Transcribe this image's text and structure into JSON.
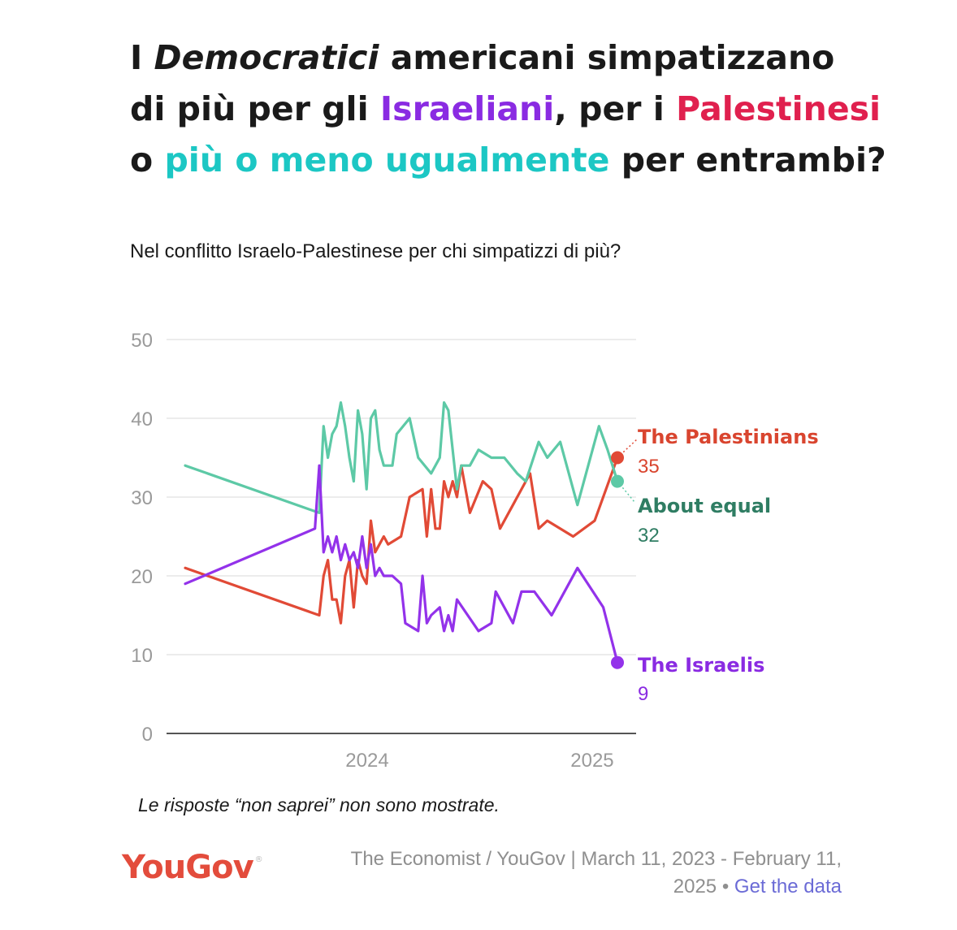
{
  "headline": {
    "l1_a": "I ",
    "l1_em": "Democratici",
    "l1_b": " americani simpatizzano",
    "l2_a": "di più per gli ",
    "l2_isr": "Israeliani",
    "l2_b": ", per i ",
    "l2_pal": "Palestinesi",
    "l3_a": "o ",
    "l3_eq": "più o meno ugualmente",
    "l3_b": " per entrambi?"
  },
  "question": "Nel conflitto Israelo-Palestinese per chi simpatizzi di più?",
  "note": "Le risposte “non saprei” non sono mostrate.",
  "footer": {
    "logo": "YouGov",
    "source_line1": "The Economist / YouGov | March 11, 2023 - February 11,",
    "source_line2a": "2025 • ",
    "source_link": "Get the data"
  },
  "colors": {
    "palestinians": "#e14a36",
    "about_equal": "#5dc9a6",
    "israelis": "#9332ea",
    "label_equal": "#2f7d63",
    "label_pal": "#d9452f",
    "label_isr": "#8a2be2",
    "grid": "#e6e6e6",
    "axis": "#555555"
  },
  "chart_data": {
    "type": "line",
    "y_ticks": [
      "0",
      "10",
      "20",
      "30",
      "40",
      "50"
    ],
    "ylim": [
      0,
      50
    ],
    "x_ticks": [
      "2024",
      "2025"
    ],
    "x_range": [
      "2023-03-11",
      "2025-02-11"
    ],
    "series": [
      {
        "name": "The Palestinians",
        "end_value": "35",
        "color_key": "palestinians",
        "points": [
          [
            "2023-03-11",
            21
          ],
          [
            "2023-10-15",
            15
          ],
          [
            "2023-10-22",
            20
          ],
          [
            "2023-10-29",
            22
          ],
          [
            "2023-11-05",
            17
          ],
          [
            "2023-11-12",
            17
          ],
          [
            "2023-11-19",
            14
          ],
          [
            "2023-11-26",
            20
          ],
          [
            "2023-12-03",
            22
          ],
          [
            "2023-12-10",
            16
          ],
          [
            "2023-12-17",
            22
          ],
          [
            "2023-12-24",
            20
          ],
          [
            "2023-12-31",
            19
          ],
          [
            "2024-01-07",
            27
          ],
          [
            "2024-01-14",
            23
          ],
          [
            "2024-01-21",
            24
          ],
          [
            "2024-01-28",
            25
          ],
          [
            "2024-02-04",
            24
          ],
          [
            "2024-02-25",
            25
          ],
          [
            "2024-03-10",
            30
          ],
          [
            "2024-03-31",
            31
          ],
          [
            "2024-04-07",
            25
          ],
          [
            "2024-04-14",
            31
          ],
          [
            "2024-04-21",
            26
          ],
          [
            "2024-04-28",
            26
          ],
          [
            "2024-05-05",
            32
          ],
          [
            "2024-05-12",
            30
          ],
          [
            "2024-05-19",
            32
          ],
          [
            "2024-05-26",
            30
          ],
          [
            "2024-06-02",
            34
          ],
          [
            "2024-06-16",
            28
          ],
          [
            "2024-07-07",
            32
          ],
          [
            "2024-07-21",
            31
          ],
          [
            "2024-08-04",
            26
          ],
          [
            "2024-08-25",
            29
          ],
          [
            "2024-09-22",
            33
          ],
          [
            "2024-10-06",
            26
          ],
          [
            "2024-10-20",
            27
          ],
          [
            "2024-12-01",
            25
          ],
          [
            "2025-01-05",
            27
          ],
          [
            "2025-02-11",
            35
          ]
        ]
      },
      {
        "name": "About equal",
        "end_value": "32",
        "color_key": "about_equal",
        "points": [
          [
            "2023-03-11",
            34
          ],
          [
            "2023-10-15",
            28
          ],
          [
            "2023-10-22",
            39
          ],
          [
            "2023-10-29",
            35
          ],
          [
            "2023-11-05",
            38
          ],
          [
            "2023-11-12",
            39
          ],
          [
            "2023-11-19",
            42
          ],
          [
            "2023-11-26",
            39
          ],
          [
            "2023-12-03",
            35
          ],
          [
            "2023-12-10",
            32
          ],
          [
            "2023-12-17",
            41
          ],
          [
            "2023-12-24",
            38
          ],
          [
            "2023-12-31",
            31
          ],
          [
            "2024-01-07",
            40
          ],
          [
            "2024-01-14",
            41
          ],
          [
            "2024-01-21",
            36
          ],
          [
            "2024-01-28",
            34
          ],
          [
            "2024-02-11",
            34
          ],
          [
            "2024-02-18",
            38
          ],
          [
            "2024-03-10",
            40
          ],
          [
            "2024-03-24",
            35
          ],
          [
            "2024-04-14",
            33
          ],
          [
            "2024-04-28",
            35
          ],
          [
            "2024-05-05",
            42
          ],
          [
            "2024-05-12",
            41
          ],
          [
            "2024-05-26",
            31
          ],
          [
            "2024-06-02",
            34
          ],
          [
            "2024-06-16",
            34
          ],
          [
            "2024-06-30",
            36
          ],
          [
            "2024-07-21",
            35
          ],
          [
            "2024-08-11",
            35
          ],
          [
            "2024-09-01",
            33
          ],
          [
            "2024-09-15",
            32
          ],
          [
            "2024-10-06",
            37
          ],
          [
            "2024-10-20",
            35
          ],
          [
            "2024-11-10",
            37
          ],
          [
            "2024-12-08",
            29
          ],
          [
            "2025-01-12",
            39
          ],
          [
            "2025-01-26",
            36
          ],
          [
            "2025-02-11",
            32
          ]
        ]
      },
      {
        "name": "The Israelis",
        "end_value": "9",
        "color_key": "israelis",
        "points": [
          [
            "2023-03-11",
            19
          ],
          [
            "2023-10-08",
            26
          ],
          [
            "2023-10-15",
            34
          ],
          [
            "2023-10-22",
            23
          ],
          [
            "2023-10-29",
            25
          ],
          [
            "2023-11-05",
            23
          ],
          [
            "2023-11-12",
            25
          ],
          [
            "2023-11-19",
            22
          ],
          [
            "2023-11-26",
            24
          ],
          [
            "2023-12-03",
            22
          ],
          [
            "2023-12-10",
            23
          ],
          [
            "2023-12-17",
            21
          ],
          [
            "2023-12-24",
            25
          ],
          [
            "2023-12-31",
            21
          ],
          [
            "2024-01-07",
            24
          ],
          [
            "2024-01-14",
            20
          ],
          [
            "2024-01-21",
            21
          ],
          [
            "2024-01-28",
            20
          ],
          [
            "2024-02-11",
            20
          ],
          [
            "2024-02-25",
            19
          ],
          [
            "2024-03-03",
            14
          ],
          [
            "2024-03-24",
            13
          ],
          [
            "2024-03-31",
            20
          ],
          [
            "2024-04-07",
            14
          ],
          [
            "2024-04-14",
            15
          ],
          [
            "2024-04-28",
            16
          ],
          [
            "2024-05-05",
            13
          ],
          [
            "2024-05-12",
            15
          ],
          [
            "2024-05-19",
            13
          ],
          [
            "2024-05-26",
            17
          ],
          [
            "2024-06-30",
            13
          ],
          [
            "2024-07-21",
            14
          ],
          [
            "2024-07-28",
            18
          ],
          [
            "2024-08-25",
            14
          ],
          [
            "2024-09-08",
            18
          ],
          [
            "2024-09-29",
            18
          ],
          [
            "2024-10-27",
            15
          ],
          [
            "2024-12-08",
            21
          ],
          [
            "2025-01-19",
            16
          ],
          [
            "2025-02-11",
            9
          ]
        ]
      }
    ]
  }
}
